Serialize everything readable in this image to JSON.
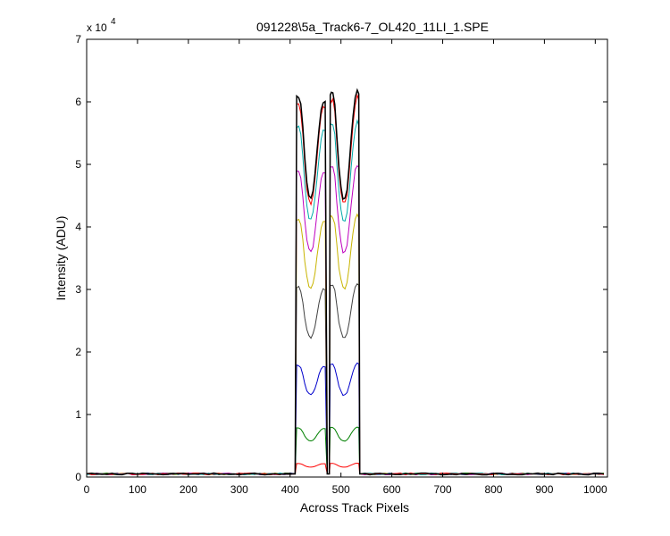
{
  "chart_data": {
    "type": "line",
    "title": "091228\\5a_Track6-7_OL420_11LI_1.SPE",
    "xlabel": "Across Track Pixels",
    "ylabel": "Intensity (ADU)",
    "y_multiplier": "x 10",
    "y_multiplier_exponent": "4",
    "xlim": [
      0,
      1024
    ],
    "ylim": [
      0,
      7
    ],
    "x_ticks": [
      0,
      100,
      200,
      300,
      400,
      500,
      600,
      700,
      800,
      900,
      1000
    ],
    "y_ticks": [
      0,
      1,
      2,
      3,
      4,
      5,
      6,
      7
    ],
    "grid": false,
    "legend": "none",
    "baseline": 0.05,
    "shape_x": [
      410,
      413,
      417,
      421,
      425,
      429,
      433,
      437,
      441,
      445,
      449,
      453,
      457,
      461,
      465,
      469,
      473,
      477,
      479,
      481,
      484,
      488,
      492,
      496,
      500,
      504,
      508,
      512,
      516,
      520,
      524,
      528,
      532,
      535,
      537
    ],
    "shape_f": [
      0.0,
      0.98,
      0.98,
      0.96,
      0.9,
      0.82,
      0.76,
      0.73,
      0.72,
      0.74,
      0.78,
      0.84,
      0.9,
      0.95,
      0.97,
      0.97,
      0.0,
      0.0,
      0.99,
      0.99,
      0.99,
      0.96,
      0.88,
      0.8,
      0.75,
      0.72,
      0.72,
      0.74,
      0.8,
      0.87,
      0.93,
      0.98,
      1.0,
      0.99,
      0.0
    ],
    "series": [
      {
        "color": "#ff0000",
        "peak": 0.22
      },
      {
        "color": "#008000",
        "peak": 0.8
      },
      {
        "color": "#0000cc",
        "peak": 1.82
      },
      {
        "color": "#404040",
        "peak": 3.1
      },
      {
        "color": "#c8b400",
        "peak": 4.2
      },
      {
        "color": "#bf00bf",
        "peak": 5.0
      },
      {
        "color": "#00aaaa",
        "peak": 5.7
      },
      {
        "color": "#ff0000",
        "peak": 6.08
      },
      {
        "color": "#000000",
        "peak": 6.2
      }
    ]
  }
}
